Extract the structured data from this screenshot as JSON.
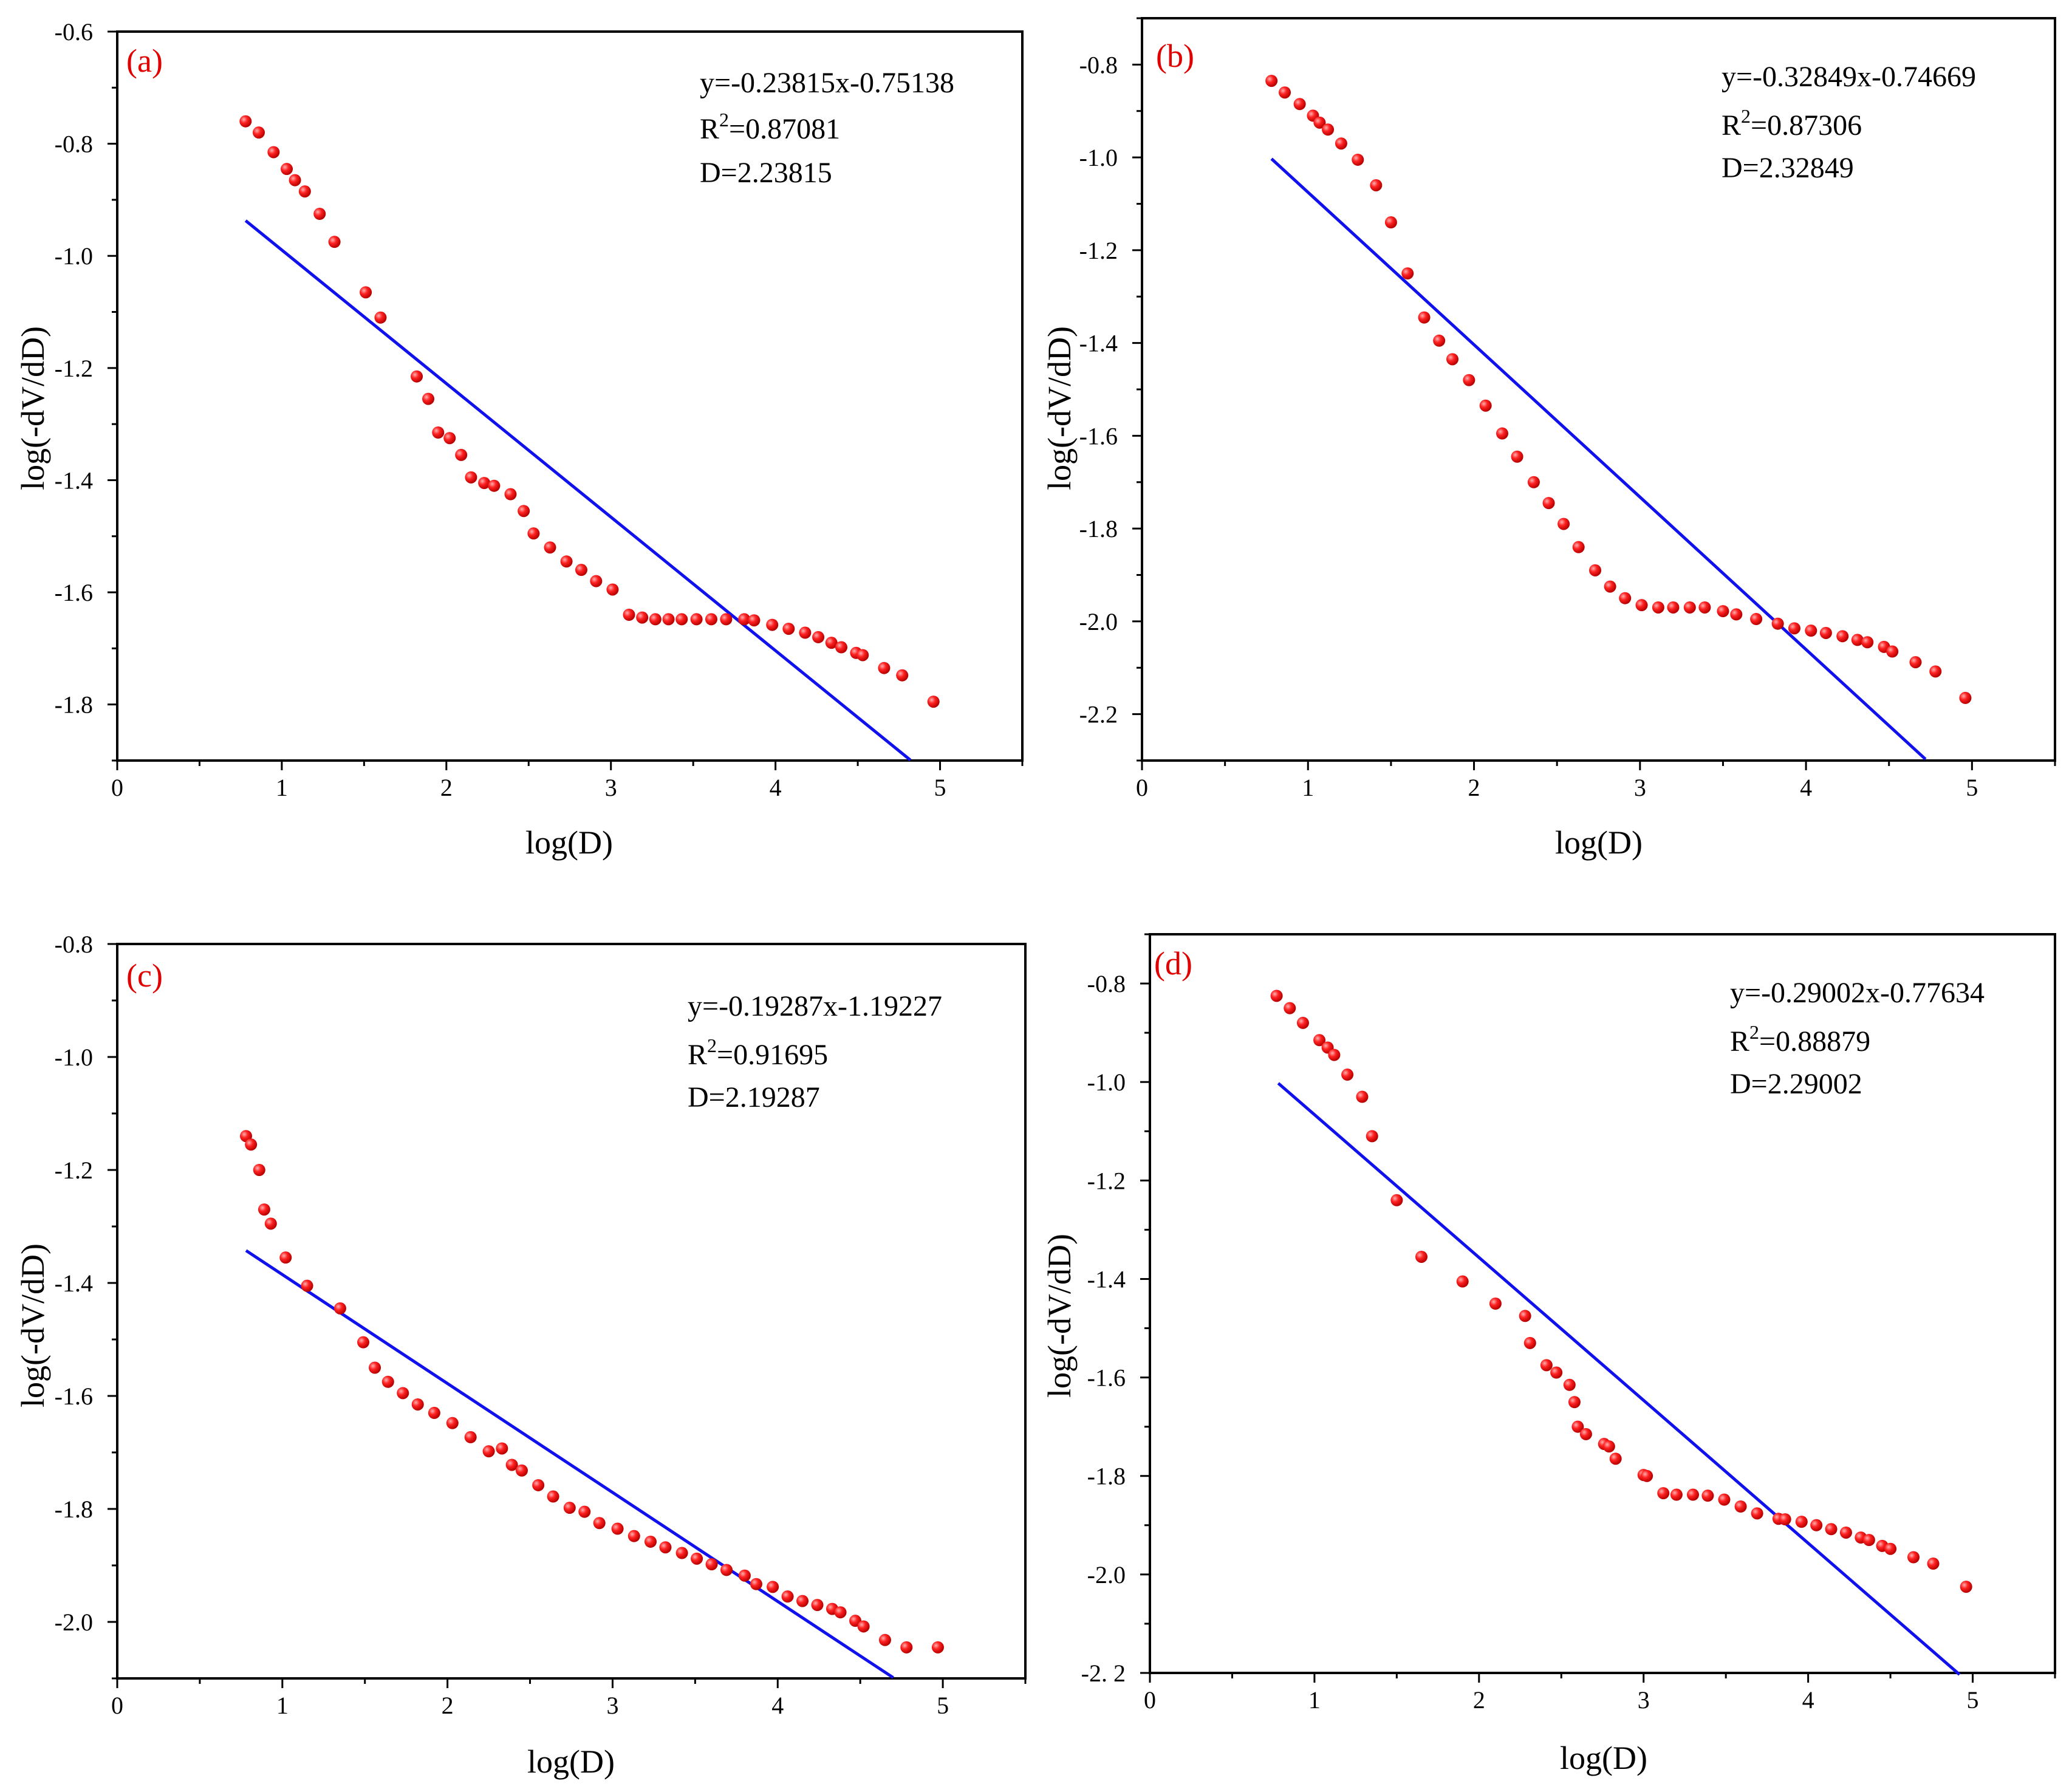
{
  "colors": {
    "points": "#ee1111",
    "fit_line": "#1111ee",
    "panel_label": "#e00000",
    "frame": "#000000"
  },
  "chart_data": [
    {
      "type": "scatter",
      "panel": "(a)",
      "xlabel": "log(D)",
      "ylabel": "log(-dV/dD)",
      "xlim": [
        0,
        5.5
      ],
      "ylim": [
        -1.9,
        -0.6
      ],
      "xticks": [
        0,
        1,
        2,
        3,
        4,
        5
      ],
      "xtick_labels": [
        "0",
        "1",
        "2",
        "3",
        "4",
        "5"
      ],
      "yticks": [
        -0.6,
        -0.8,
        -1.0,
        -1.2,
        -1.4,
        -1.6,
        -1.8
      ],
      "ytick_labels": [
        "-0.6",
        "-0.8",
        "-1.0",
        "-1.2",
        "-1.4",
        "-1.6",
        "-1.8"
      ],
      "annotation": {
        "equation": "y=-0.23815x-0.75138",
        "r2_prefix": "R",
        "r2_sup": "2",
        "r2_value": "=0.87081",
        "d": "D=2.23815"
      },
      "fit": {
        "slope": -0.23815,
        "intercept": -0.75138,
        "x_start": 0.78,
        "x_end": 4.82
      },
      "points": {
        "x": [
          0.78,
          0.86,
          0.95,
          1.03,
          1.08,
          1.14,
          1.23,
          1.32,
          1.51,
          1.6,
          1.82,
          1.89,
          1.95,
          2.02,
          2.09,
          2.15,
          2.23,
          2.29,
          2.39,
          2.47,
          2.53,
          2.63,
          2.73,
          2.82,
          2.91,
          3.01,
          3.11,
          3.19,
          3.27,
          3.35,
          3.43,
          3.52,
          3.61,
          3.7,
          3.81,
          3.87,
          3.98,
          4.08,
          4.18,
          4.26,
          4.34,
          4.4,
          4.49,
          4.53,
          4.66,
          4.77,
          4.96
        ],
        "y": [
          -0.76,
          -0.78,
          -0.815,
          -0.845,
          -0.865,
          -0.885,
          -0.925,
          -0.975,
          -1.065,
          -1.11,
          -1.215,
          -1.255,
          -1.315,
          -1.325,
          -1.355,
          -1.395,
          -1.405,
          -1.41,
          -1.425,
          -1.455,
          -1.495,
          -1.52,
          -1.545,
          -1.56,
          -1.58,
          -1.595,
          -1.64,
          -1.645,
          -1.648,
          -1.648,
          -1.648,
          -1.648,
          -1.648,
          -1.648,
          -1.648,
          -1.65,
          -1.658,
          -1.665,
          -1.672,
          -1.68,
          -1.69,
          -1.698,
          -1.708,
          -1.712,
          -1.735,
          -1.748,
          -1.795
        ]
      }
    },
    {
      "type": "scatter",
      "panel": "(b)",
      "xlabel": "log(D)",
      "ylabel": "log(-dV/dD)",
      "xlim": [
        0,
        5.5
      ],
      "ylim": [
        -2.3,
        -0.7
      ],
      "xticks": [
        0,
        1,
        2,
        3,
        4,
        5
      ],
      "xtick_labels": [
        "0",
        "1",
        "2",
        "3",
        "4",
        "5"
      ],
      "yticks": [
        -0.8,
        -1.0,
        -1.2,
        -1.4,
        -1.6,
        -1.8,
        -2.0,
        -2.2
      ],
      "ytick_labels": [
        "-0.8",
        "-1.0",
        "-1.2",
        "-1.4",
        "-1.6",
        "-1.8",
        "-2.0",
        "-2.2"
      ],
      "annotation": {
        "equation": "y=-0.32849x-0.74669",
        "r2_prefix": "R",
        "r2_sup": "2",
        "r2_value": "=0.87306",
        "d": "D=2.32849"
      },
      "fit": {
        "slope": -0.32849,
        "intercept": -0.74669,
        "x_start": 0.78,
        "x_end": 4.72
      },
      "points": {
        "x": [
          0.78,
          0.86,
          0.95,
          1.03,
          1.07,
          1.12,
          1.2,
          1.3,
          1.41,
          1.5,
          1.6,
          1.7,
          1.79,
          1.87,
          1.97,
          2.07,
          2.17,
          2.26,
          2.36,
          2.45,
          2.54,
          2.63,
          2.73,
          2.82,
          2.91,
          3.01,
          3.11,
          3.2,
          3.3,
          3.39,
          3.5,
          3.58,
          3.7,
          3.83,
          3.93,
          4.03,
          4.12,
          4.22,
          4.31,
          4.37,
          4.47,
          4.52,
          4.66,
          4.78,
          4.96
        ],
        "y": [
          -0.835,
          -0.86,
          -0.885,
          -0.91,
          -0.925,
          -0.94,
          -0.97,
          -1.005,
          -1.06,
          -1.14,
          -1.25,
          -1.345,
          -1.395,
          -1.435,
          -1.48,
          -1.535,
          -1.595,
          -1.645,
          -1.7,
          -1.745,
          -1.79,
          -1.84,
          -1.89,
          -1.925,
          -1.95,
          -1.965,
          -1.97,
          -1.97,
          -1.97,
          -1.97,
          -1.978,
          -1.985,
          -1.995,
          -2.005,
          -2.015,
          -2.02,
          -2.025,
          -2.032,
          -2.04,
          -2.045,
          -2.055,
          -2.065,
          -2.088,
          -2.108,
          -2.165
        ]
      }
    },
    {
      "type": "scatter",
      "panel": "(c)",
      "xlabel": "log(D)",
      "ylabel": "log(-dV/dD)",
      "xlim": [
        0,
        5.5
      ],
      "ylim": [
        -2.1,
        -0.8
      ],
      "xticks": [
        0,
        1,
        2,
        3,
        4,
        5
      ],
      "xtick_labels": [
        "0",
        "1",
        "2",
        "3",
        "4",
        "5"
      ],
      "yticks": [
        -0.8,
        -1.0,
        -1.2,
        -1.4,
        -1.6,
        -1.8,
        -2.0
      ],
      "ytick_labels": [
        "-0.8",
        "-1.0",
        "-1.2",
        "-1.4",
        "-1.6",
        "-1.8",
        "-2.0"
      ],
      "annotation": {
        "equation": "y=-0.19287x-1.19227",
        "r2_prefix": "R",
        "r2_sup": "2",
        "r2_value": "=0.91695",
        "d": "D=2.19287"
      },
      "fit": {
        "slope": -0.19287,
        "intercept": -1.19227,
        "x_start": 0.78,
        "x_end": 4.7
      },
      "points": {
        "x": [
          0.78,
          0.81,
          0.86,
          0.89,
          0.93,
          1.02,
          1.15,
          1.35,
          1.49,
          1.56,
          1.64,
          1.73,
          1.82,
          1.92,
          2.03,
          2.14,
          2.25,
          2.33,
          2.39,
          2.45,
          2.55,
          2.64,
          2.74,
          2.83,
          2.92,
          3.03,
          3.13,
          3.23,
          3.32,
          3.42,
          3.51,
          3.6,
          3.69,
          3.8,
          3.87,
          3.97,
          4.06,
          4.15,
          4.24,
          4.33,
          4.38,
          4.47,
          4.52,
          4.65,
          4.78,
          4.97
        ],
        "y": [
          -1.14,
          -1.155,
          -1.2,
          -1.27,
          -1.295,
          -1.355,
          -1.405,
          -1.445,
          -1.505,
          -1.55,
          -1.575,
          -1.595,
          -1.615,
          -1.63,
          -1.648,
          -1.673,
          -1.698,
          -1.693,
          -1.722,
          -1.732,
          -1.758,
          -1.778,
          -1.798,
          -1.805,
          -1.825,
          -1.835,
          -1.848,
          -1.858,
          -1.868,
          -1.878,
          -1.888,
          -1.898,
          -1.908,
          -1.918,
          -1.933,
          -1.938,
          -1.955,
          -1.963,
          -1.97,
          -1.977,
          -1.983,
          -1.998,
          -2.008,
          -2.032,
          -2.045,
          -2.045
        ]
      }
    },
    {
      "type": "scatter",
      "panel": "(d)",
      "xlabel": "log(D)",
      "ylabel": "log(-dV/dD)",
      "xlim": [
        0,
        5.5
      ],
      "ylim": [
        -2.2,
        -0.7
      ],
      "xticks": [
        0,
        1,
        2,
        3,
        4,
        5
      ],
      "xtick_labels": [
        "0",
        "1",
        "2",
        "3",
        "4",
        "5"
      ],
      "yticks": [
        -0.8,
        -1.0,
        -1.2,
        -1.4,
        -1.6,
        -1.8,
        -2.0,
        -2.2
      ],
      "ytick_labels": [
        "-0.8",
        "-1.0",
        "-1.2",
        "-1.4",
        "-1.6",
        "-1.8",
        "-2.0",
        "-2. 2"
      ],
      "annotation": {
        "equation": "y=-0.29002x-0.77634",
        "r2_prefix": "R",
        "r2_sup": "2",
        "r2_value": "=0.88879",
        "d": "D=2.29002"
      },
      "fit": {
        "slope": -0.29002,
        "intercept": -0.77634,
        "x_start": 0.78,
        "x_end": 4.92
      },
      "points": {
        "x": [
          0.77,
          0.85,
          0.93,
          1.03,
          1.08,
          1.12,
          1.2,
          1.29,
          1.35,
          1.5,
          1.65,
          1.9,
          2.1,
          2.28,
          2.31,
          2.41,
          2.47,
          2.55,
          2.58,
          2.6,
          2.65,
          2.76,
          2.79,
          2.83,
          3.0,
          3.02,
          3.12,
          3.2,
          3.3,
          3.39,
          3.49,
          3.59,
          3.69,
          3.82,
          3.86,
          3.96,
          4.05,
          4.14,
          4.23,
          4.32,
          4.37,
          4.45,
          4.5,
          4.64,
          4.76,
          4.96
        ],
        "y": [
          -0.825,
          -0.85,
          -0.88,
          -0.915,
          -0.93,
          -0.945,
          -0.985,
          -1.03,
          -1.11,
          -1.24,
          -1.355,
          -1.405,
          -1.45,
          -1.475,
          -1.53,
          -1.575,
          -1.59,
          -1.615,
          -1.65,
          -1.7,
          -1.715,
          -1.735,
          -1.74,
          -1.765,
          -1.798,
          -1.8,
          -1.835,
          -1.838,
          -1.838,
          -1.84,
          -1.848,
          -1.862,
          -1.876,
          -1.887,
          -1.888,
          -1.893,
          -1.9,
          -1.908,
          -1.915,
          -1.925,
          -1.93,
          -1.942,
          -1.948,
          -1.965,
          -1.978,
          -2.025
        ]
      }
    }
  ]
}
